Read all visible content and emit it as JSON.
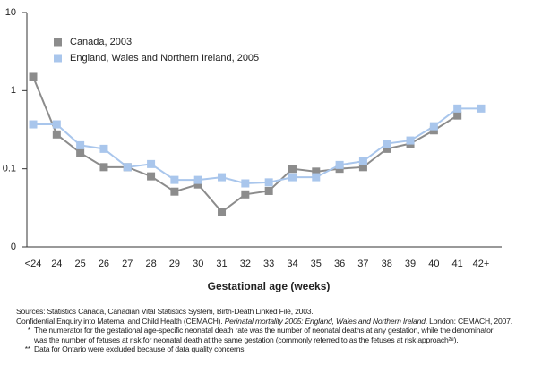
{
  "chart_data": {
    "type": "line",
    "x_label": "Gestational age (weeks)",
    "categories": [
      "<24",
      "24",
      "25",
      "26",
      "27",
      "28",
      "29",
      "30",
      "31",
      "32",
      "33",
      "34",
      "35",
      "36",
      "37",
      "38",
      "39",
      "40",
      "41",
      "42+"
    ],
    "series": [
      {
        "name": "Canada, 2003",
        "color": "#8c8c8c",
        "values": [
          1.5,
          0.275,
          0.16,
          0.105,
          0.105,
          0.08,
          0.051,
          0.063,
          0.028,
          0.047,
          0.052,
          0.1,
          0.092,
          0.1,
          0.105,
          0.18,
          0.21,
          0.31,
          0.48,
          null
        ]
      },
      {
        "name": "England, Wales and Northern Ireland, 2005",
        "color": "#a9c6ec",
        "values": [
          0.37,
          0.37,
          0.2,
          0.18,
          0.105,
          0.115,
          0.072,
          0.072,
          0.078,
          0.065,
          0.067,
          0.078,
          0.078,
          0.112,
          0.125,
          0.21,
          0.23,
          0.35,
          0.59,
          0.59
        ]
      }
    ],
    "log_scale": true,
    "ylim": [
      0.01,
      10
    ],
    "yticks": [
      {
        "value": 0.01,
        "label": "0"
      },
      0.1,
      1,
      10
    ],
    "grid": false,
    "legend": "upper left",
    "sources": [
      [
        "Sources: Statistics Canada, Canadian Vital Statistics System, Birth-Death Linked File, 2003."
      ],
      [
        "Confidential Enquiry into Maternal and Child Health (CEMACH). ",
        "Perinatal mortality 2005: England, Wales and Northern Ireland",
        ". London: CEMACH, 2007."
      ]
    ],
    "notes": [
      [
        "*",
        "The numerator for the gestational age-specific neonatal death rate was the number of neonatal deaths at any gestation, while the denominator",
        "was the number of fetuses at risk for neonatal death at the same gestation (commonly referred to as the fetuses at risk approach²⁸)."
      ],
      [
        "**",
        "Data for Ontario were excluded because of data quality concerns."
      ]
    ]
  }
}
